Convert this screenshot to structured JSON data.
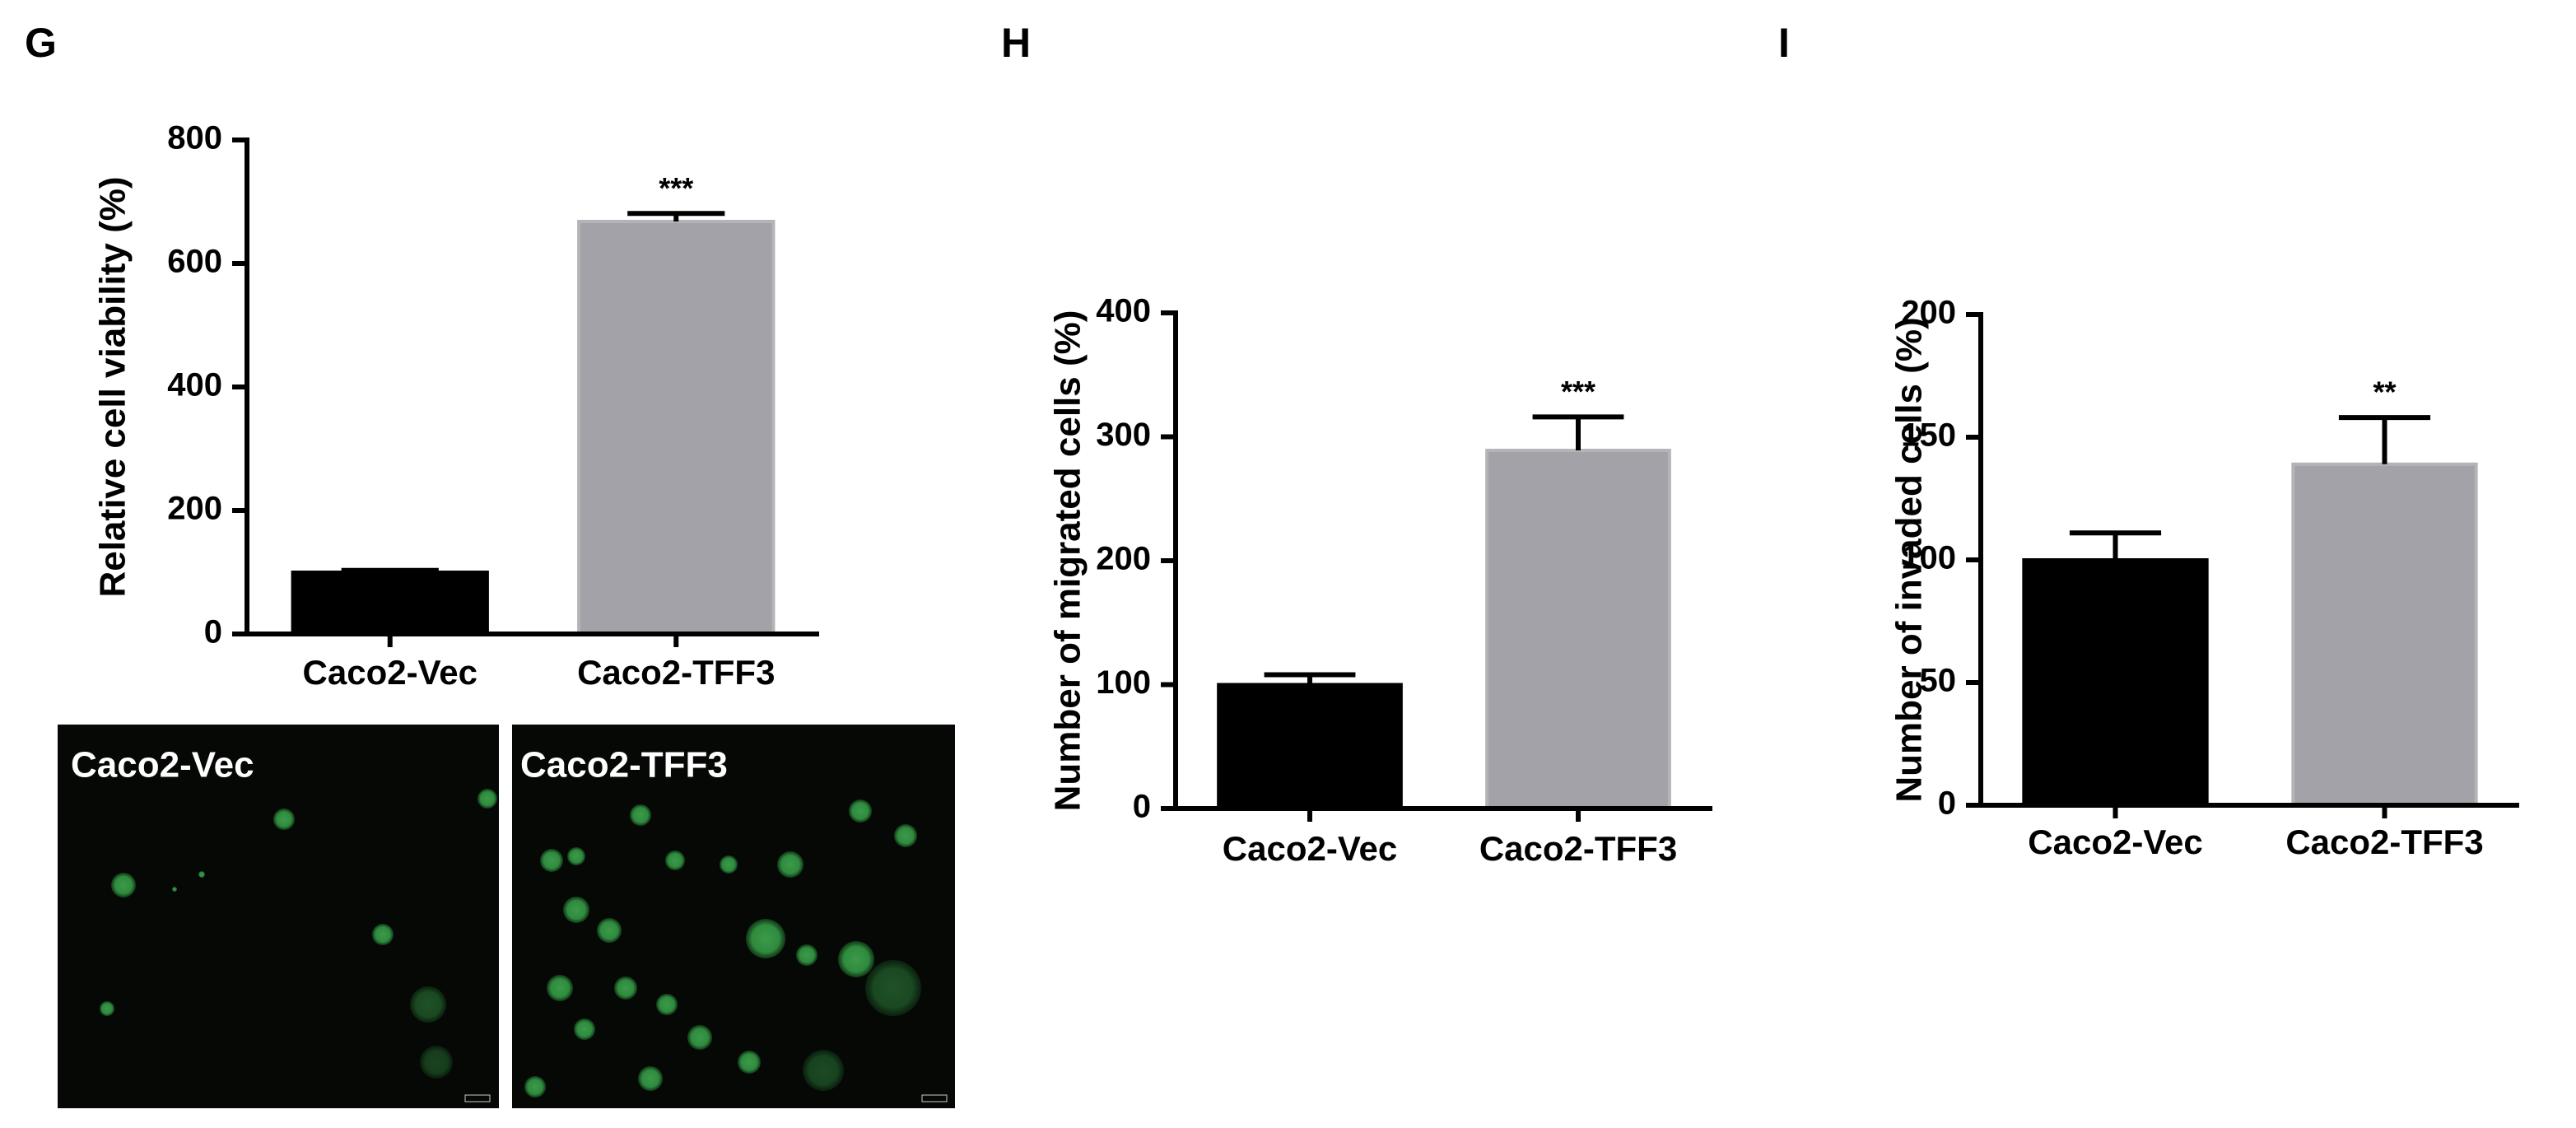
{
  "chart_data": [
    {
      "type": "bar",
      "panel_label": "G",
      "ylabel": "Relative cell viability (%)",
      "categories": [
        "Caco2-Vec",
        "Caco2-TFF3"
      ],
      "values": [
        100,
        668
      ],
      "errors": [
        3,
        13
      ],
      "colors": [
        "#000000",
        "#a2a2a8"
      ],
      "annotation": "***",
      "ylim": [
        0,
        800
      ],
      "yticks": [
        0,
        200,
        400,
        600,
        800
      ]
    },
    {
      "type": "bar",
      "panel_label": "H",
      "ylabel": "Number of migrated cells (%)",
      "categories": [
        "Caco2-Vec",
        "Caco2-TFF3"
      ],
      "values": [
        100,
        289
      ],
      "errors": [
        8,
        27
      ],
      "colors": [
        "#000000",
        "#a2a2a8"
      ],
      "annotation": "***",
      "ylim": [
        0,
        400
      ],
      "yticks": [
        0,
        100,
        200,
        300,
        400
      ]
    },
    {
      "type": "bar",
      "panel_label": "I",
      "ylabel": "Number of invaded cells (%)",
      "categories": [
        "Caco2-Vec",
        "Caco2-TFF3"
      ],
      "values": [
        100,
        139
      ],
      "errors": [
        11,
        19
      ],
      "colors": [
        "#000000",
        "#a2a2a8"
      ],
      "annotation": "**",
      "ylim": [
        0,
        200
      ],
      "yticks": [
        0,
        50,
        100,
        150,
        200
      ]
    }
  ],
  "images": [
    {
      "label": "Caco2-Vec"
    },
    {
      "label": "Caco2-TFF3"
    }
  ]
}
